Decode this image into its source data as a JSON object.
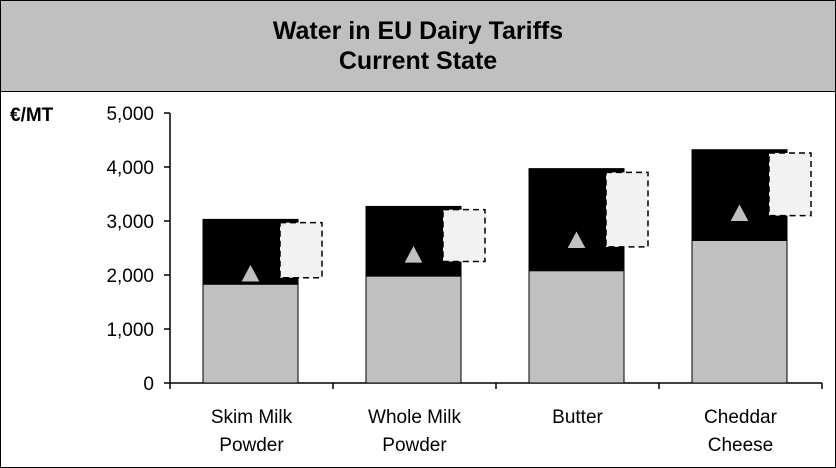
{
  "chart_data": {
    "type": "bar",
    "title": "Water in EU Dairy Tariffs",
    "subtitle": "Current State",
    "ylabel": "€/MT",
    "ylim": [
      0,
      5000
    ],
    "yticks": [
      "5,000",
      "4,000",
      "3,000",
      "2,000",
      "1,000",
      "0"
    ],
    "categories": [
      [
        "Skim Milk",
        "Powder"
      ],
      [
        "Whole Milk",
        "Powder"
      ],
      [
        "Butter"
      ],
      [
        "Cheddar",
        "Cheese"
      ]
    ],
    "series": [
      {
        "values": [
          1830,
          1980,
          2080,
          2640
        ],
        "color": "#c0c0c0"
      },
      {
        "values": [
          1200,
          1290,
          1890,
          1680
        ],
        "color": "#000000"
      }
    ],
    "markers": [
      2000,
      2350,
      2620,
      3120
    ],
    "dashed_boxes": [
      {
        "low": 1950,
        "high": 2970
      },
      {
        "low": 2250,
        "high": 3210
      },
      {
        "low": 2520,
        "high": 3900
      },
      {
        "low": 3100,
        "high": 4260
      }
    ],
    "grid": false,
    "legend": "none"
  }
}
